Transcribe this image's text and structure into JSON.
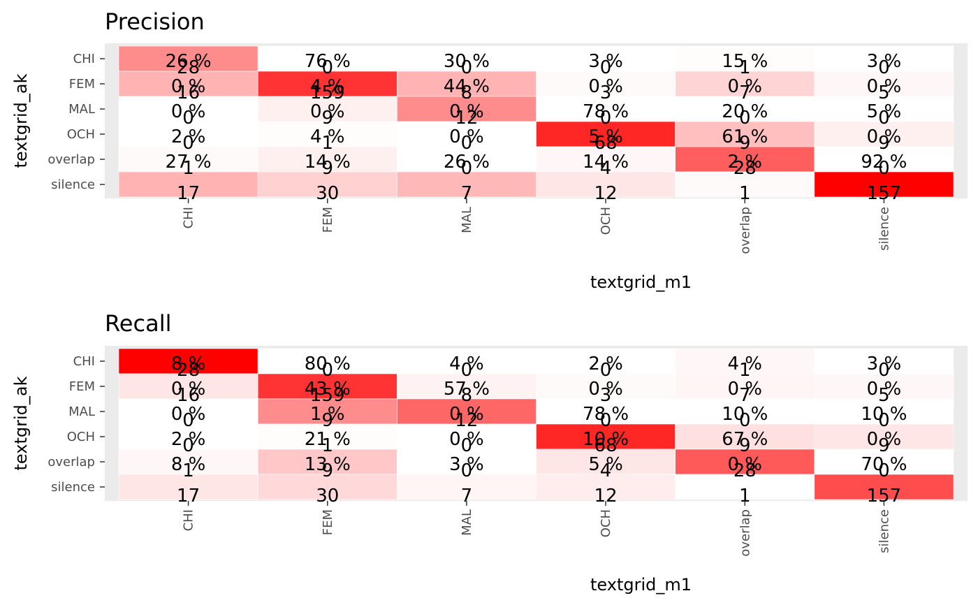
{
  "chart_data": [
    {
      "type": "heatmap",
      "title": "Precision",
      "xlabel": "textgrid_m1",
      "ylabel": "textgrid_ak",
      "x_categories": [
        "CHI",
        "FEM",
        "MAL",
        "OCH",
        "overlap",
        "silence"
      ],
      "y_categories": [
        "CHI",
        "FEM",
        "MAL",
        "OCH",
        "overlap",
        "silence"
      ],
      "percent_labels": [
        [
          "26 %",
          "76 %",
          "30 %",
          "3 %",
          "15 %",
          "3 %"
        ],
        [
          "0 %",
          "4 %",
          "44 %",
          "0 %",
          "0 %",
          "0 %"
        ],
        [
          "0 %",
          "0 %",
          "0 %",
          "78 %",
          "20 %",
          "5 %"
        ],
        [
          "2 %",
          "4 %",
          "0 %",
          "5 %",
          "61 %",
          "0 %"
        ],
        [
          "27 %",
          "14 %",
          "26 %",
          "14 %",
          "2 %",
          "92 %"
        ],
        [
          "",
          "",
          "",
          "",
          "",
          ""
        ]
      ],
      "counts": [
        [
          28,
          0,
          0,
          0,
          1,
          0
        ],
        [
          16,
          159,
          8,
          3,
          7,
          5
        ],
        [
          0,
          9,
          12,
          0,
          0,
          0
        ],
        [
          0,
          1,
          0,
          68,
          9,
          9
        ],
        [
          1,
          9,
          0,
          4,
          28,
          0
        ],
        [
          17,
          30,
          7,
          12,
          1,
          157
        ]
      ],
      "fill_intensity": [
        [
          0.45,
          0.0,
          0.0,
          0.0,
          0.01,
          0.0
        ],
        [
          0.3,
          0.8,
          0.3,
          0.02,
          0.17,
          0.03
        ],
        [
          0.0,
          0.06,
          0.45,
          0.0,
          0.0,
          0.0
        ],
        [
          0.0,
          0.01,
          0.0,
          0.85,
          0.25,
          0.06
        ],
        [
          0.02,
          0.06,
          0.0,
          0.03,
          0.63,
          0.0
        ],
        [
          0.3,
          0.18,
          0.28,
          0.1,
          0.02,
          1.0
        ]
      ],
      "color_low": "#ffffff",
      "color_high": "#ff0000"
    },
    {
      "type": "heatmap",
      "title": "Recall",
      "xlabel": "textgrid_m1",
      "ylabel": "textgrid_ak",
      "x_categories": [
        "CHI",
        "FEM",
        "MAL",
        "OCH",
        "overlap",
        "silence"
      ],
      "y_categories": [
        "CHI",
        "FEM",
        "MAL",
        "OCH",
        "overlap",
        "silence"
      ],
      "percent_labels": [
        [
          "8 %",
          "80 %",
          "4 %",
          "2 %",
          "4 %",
          "3 %"
        ],
        [
          "0 %",
          "43 %",
          "57 %",
          "0 %",
          "0 %",
          "0 %"
        ],
        [
          "0 %",
          "1 %",
          "0 %",
          "78 %",
          "10 %",
          "10 %"
        ],
        [
          "2 %",
          "21 %",
          "0 %",
          "10 %",
          "67 %",
          "0 %"
        ],
        [
          "8 %",
          "13 %",
          "3 %",
          "5 %",
          "0 %",
          "70 %"
        ],
        [
          "",
          "",
          "",
          "",
          "",
          ""
        ]
      ],
      "counts": [
        [
          28,
          0,
          0,
          0,
          1,
          0
        ],
        [
          16,
          159,
          8,
          3,
          7,
          5
        ],
        [
          0,
          9,
          12,
          0,
          0,
          0
        ],
        [
          0,
          1,
          0,
          68,
          9,
          9
        ],
        [
          1,
          9,
          0,
          4,
          28,
          0
        ],
        [
          17,
          30,
          7,
          12,
          1,
          157
        ]
      ],
      "fill_intensity": [
        [
          1.0,
          0.0,
          0.0,
          0.0,
          0.03,
          0.0
        ],
        [
          0.1,
          0.8,
          0.05,
          0.02,
          0.04,
          0.03
        ],
        [
          0.0,
          0.45,
          0.6,
          0.0,
          0.0,
          0.0
        ],
        [
          0.0,
          0.01,
          0.0,
          0.85,
          0.12,
          0.1
        ],
        [
          0.03,
          0.22,
          0.0,
          0.1,
          0.65,
          0.0
        ],
        [
          0.1,
          0.15,
          0.04,
          0.07,
          0.0,
          0.7
        ]
      ],
      "color_low": "#ffffff",
      "color_high": "#ff0000"
    }
  ]
}
